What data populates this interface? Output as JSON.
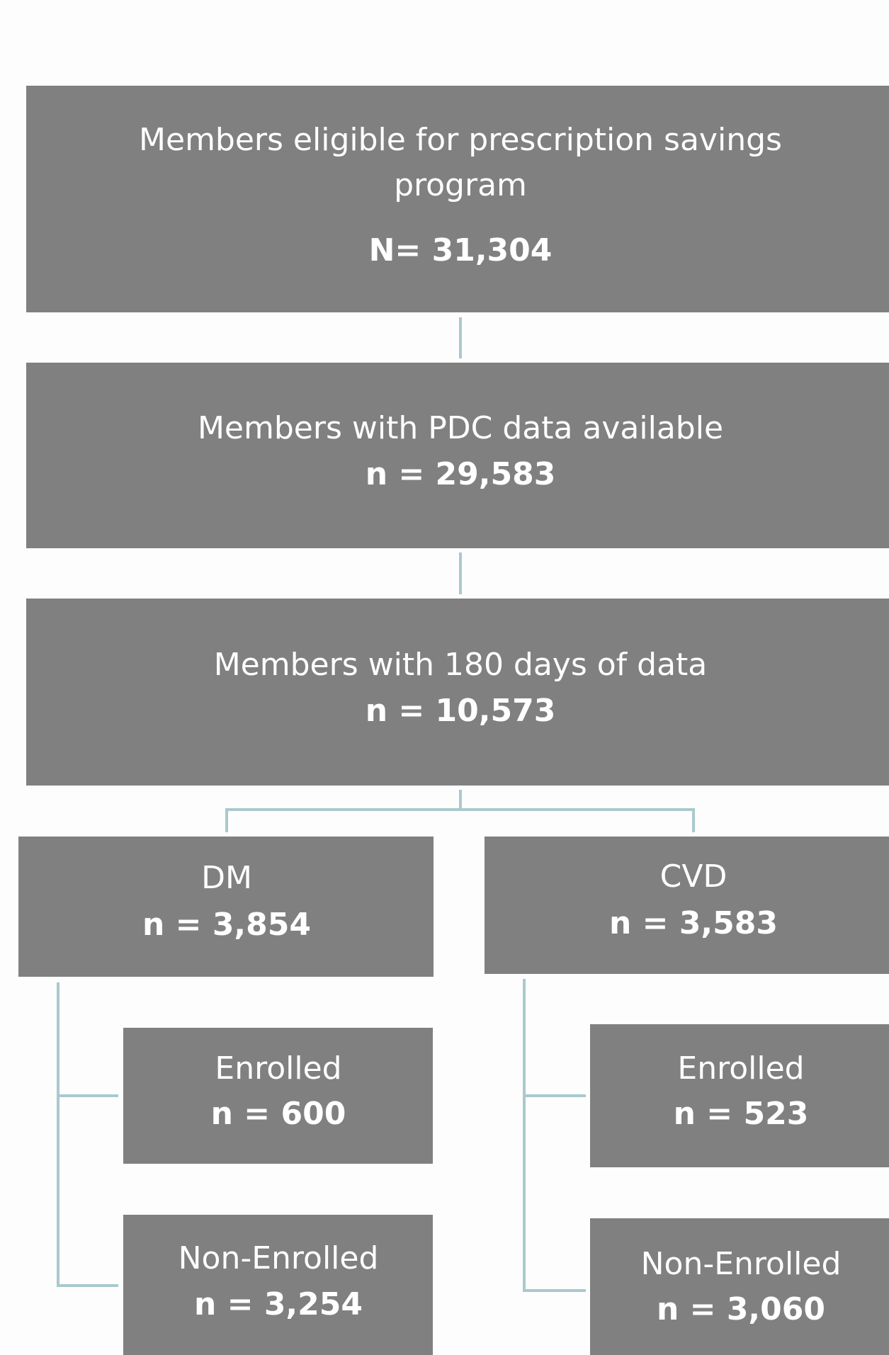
{
  "nodes": [
    {
      "label": "Members eligible for prescription savings program",
      "count": "N= 31,304"
    },
    {
      "label": "Members with PDC data available",
      "count": "n = 29,583"
    },
    {
      "label": "Members with 180 days of data",
      "count": "n = 10,573"
    },
    {
      "label": "DM",
      "count": "n = 3,854"
    },
    {
      "label": "CVD",
      "count": "n = 3,583"
    },
    {
      "label": "Enrolled",
      "count": "n = 600"
    },
    {
      "label": "Non-Enrolled",
      "count": "n = 3,254"
    },
    {
      "label": "Enrolled",
      "count": "n = 523"
    },
    {
      "label": "Non-Enrolled",
      "count": "n = 3,060"
    }
  ]
}
